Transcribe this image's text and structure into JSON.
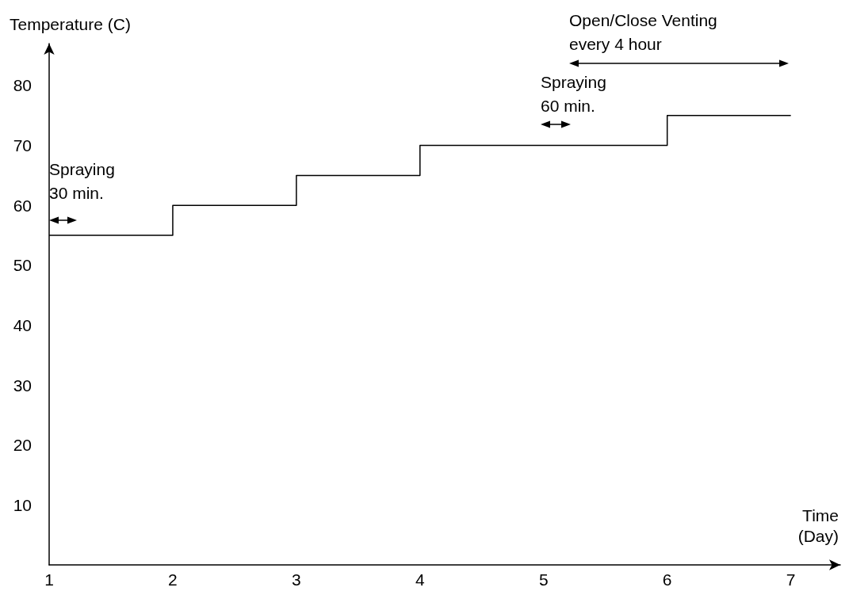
{
  "chart_data": {
    "type": "step",
    "xlabel": "Time\n(Day)",
    "ylabel": "Temperature (C)",
    "x": [
      1,
      2,
      3,
      4,
      5,
      6,
      7
    ],
    "series": [
      {
        "color": "#000000",
        "values": [
          55,
          60,
          65,
          70,
          70,
          75,
          75
        ]
      }
    ],
    "xlim": [
      1,
      7.4
    ],
    "xticks": [
      1,
      2,
      3,
      4,
      5,
      6,
      7
    ],
    "ylim": [
      0,
      87
    ],
    "yticks": [
      10,
      20,
      30,
      40,
      50,
      60,
      70,
      80
    ],
    "grid": false,
    "marker": "none",
    "line_style": "solid",
    "annotations": [
      "Spraying\n30 min.",
      "Spraying\n60 min.",
      "Open/Close Venting\nevery 4 hour"
    ]
  }
}
